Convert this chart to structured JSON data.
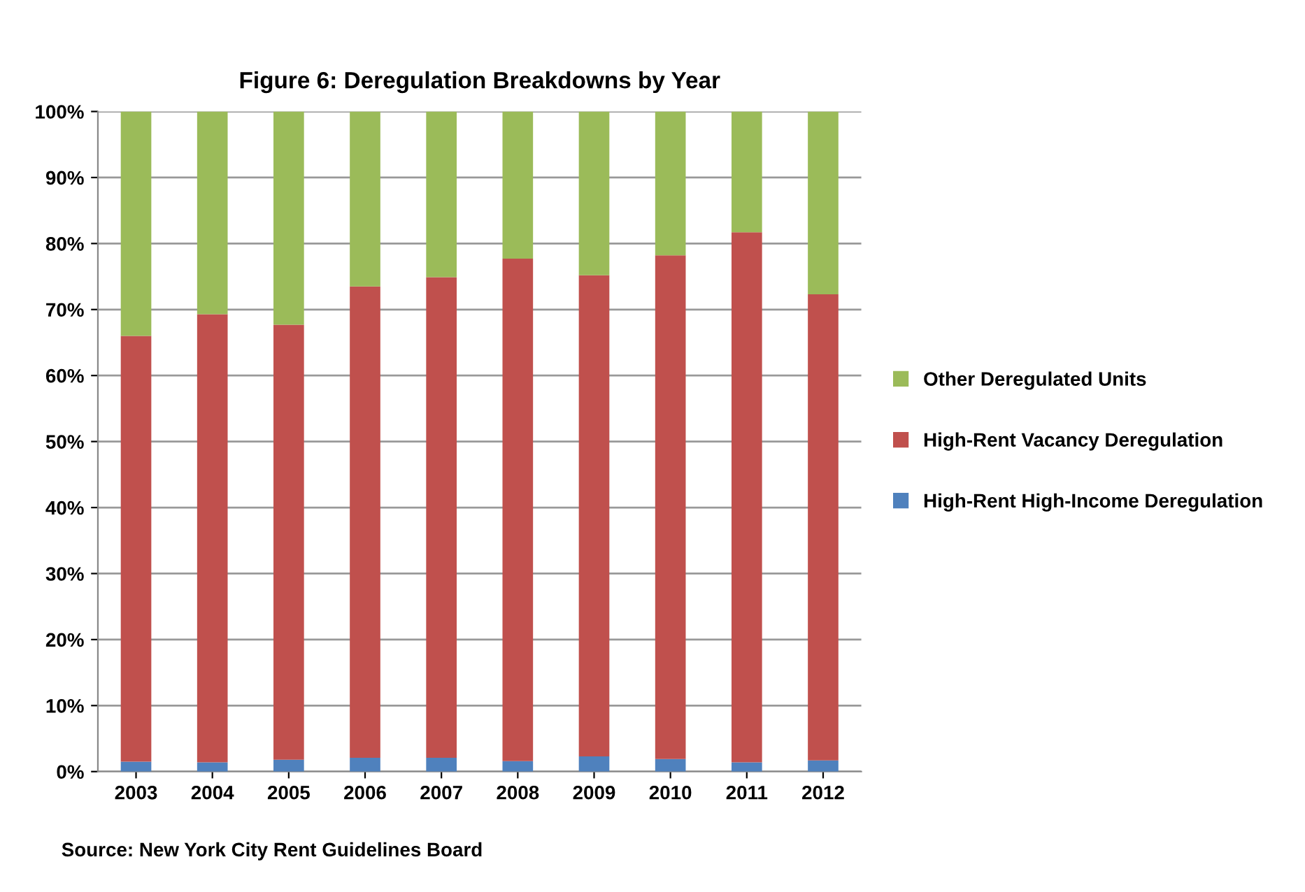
{
  "chart_data": {
    "type": "bar",
    "title": "Figure 6: Deregulation Breakdowns by Year",
    "categories": [
      "2003",
      "2004",
      "2005",
      "2006",
      "2007",
      "2008",
      "2009",
      "2010",
      "2011",
      "2012"
    ],
    "stacked": true,
    "series": [
      {
        "name": "High-Rent High-Income Deregulation",
        "color": "#4f81bd",
        "values": [
          1.5,
          1.4,
          1.8,
          2.1,
          2.1,
          1.6,
          2.3,
          1.9,
          1.4,
          1.7
        ]
      },
      {
        "name": "High-Rent Vacancy Deregulation",
        "color": "#c0504d",
        "values": [
          64.5,
          67.9,
          65.9,
          71.4,
          72.8,
          76.1,
          72.9,
          76.3,
          80.3,
          70.6
        ]
      },
      {
        "name": "Other Deregulated Units",
        "color": "#9bbb59",
        "values": [
          34.0,
          30.7,
          32.3,
          26.5,
          25.1,
          22.3,
          24.8,
          21.8,
          18.3,
          27.7
        ]
      }
    ],
    "ylim": [
      0,
      100
    ],
    "yticks": [
      {
        "value": 0,
        "label": "0%"
      },
      {
        "value": 10,
        "label": "10%"
      },
      {
        "value": 20,
        "label": "20%"
      },
      {
        "value": 30,
        "label": "30%"
      },
      {
        "value": 40,
        "label": "40%"
      },
      {
        "value": 50,
        "label": "50%"
      },
      {
        "value": 60,
        "label": "60%"
      },
      {
        "value": 70,
        "label": "70%"
      },
      {
        "value": 80,
        "label": "80%"
      },
      {
        "value": 90,
        "label": "90%"
      },
      {
        "value": 100,
        "label": "100%"
      }
    ],
    "grid": "y",
    "legend": "right",
    "annotations": [
      "Source: New York City Rent Guidelines Board"
    ]
  }
}
